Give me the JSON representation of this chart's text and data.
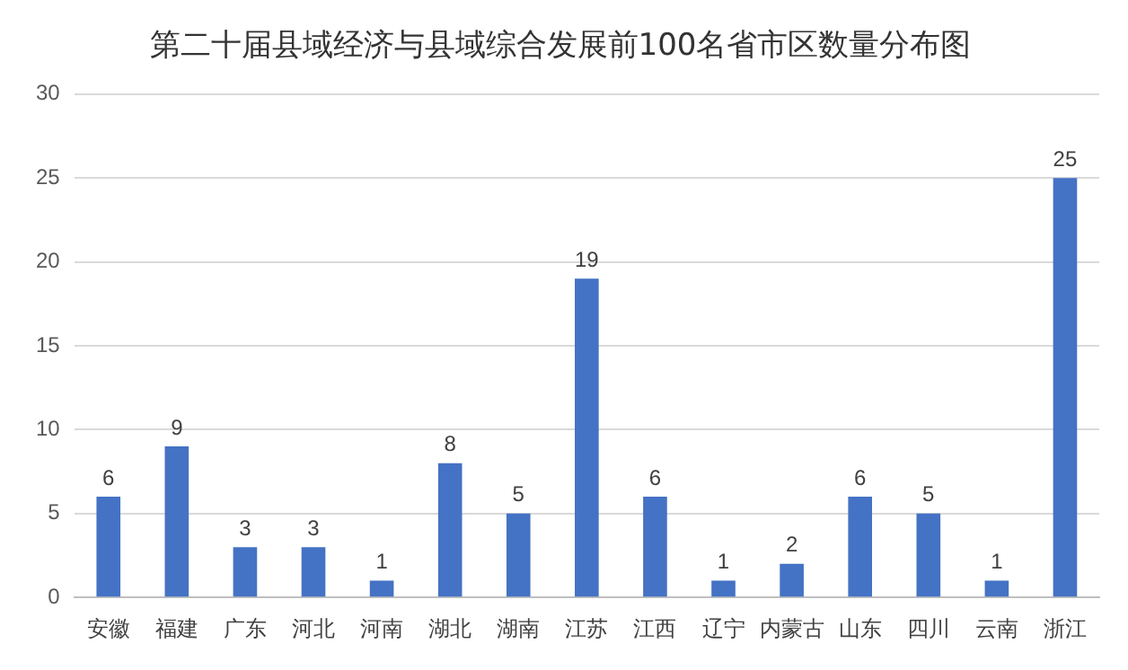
{
  "chart_data": {
    "type": "bar",
    "title": "第二十届县域经济与县域综合发展前100名省市区数量分布图",
    "categories": [
      "安徽",
      "福建",
      "广东",
      "河北",
      "河南",
      "湖北",
      "湖南",
      "江苏",
      "江西",
      "辽宁",
      "内蒙古",
      "山东",
      "四川",
      "云南",
      "浙江"
    ],
    "values": [
      6,
      9,
      3,
      3,
      1,
      8,
      5,
      19,
      6,
      1,
      2,
      6,
      5,
      1,
      25
    ],
    "color": "#4472c4",
    "ylim": [
      0,
      30
    ],
    "yticks": [
      0,
      5,
      10,
      15,
      20,
      25,
      30
    ],
    "grid": "y",
    "data_labels": true,
    "legend": false
  }
}
